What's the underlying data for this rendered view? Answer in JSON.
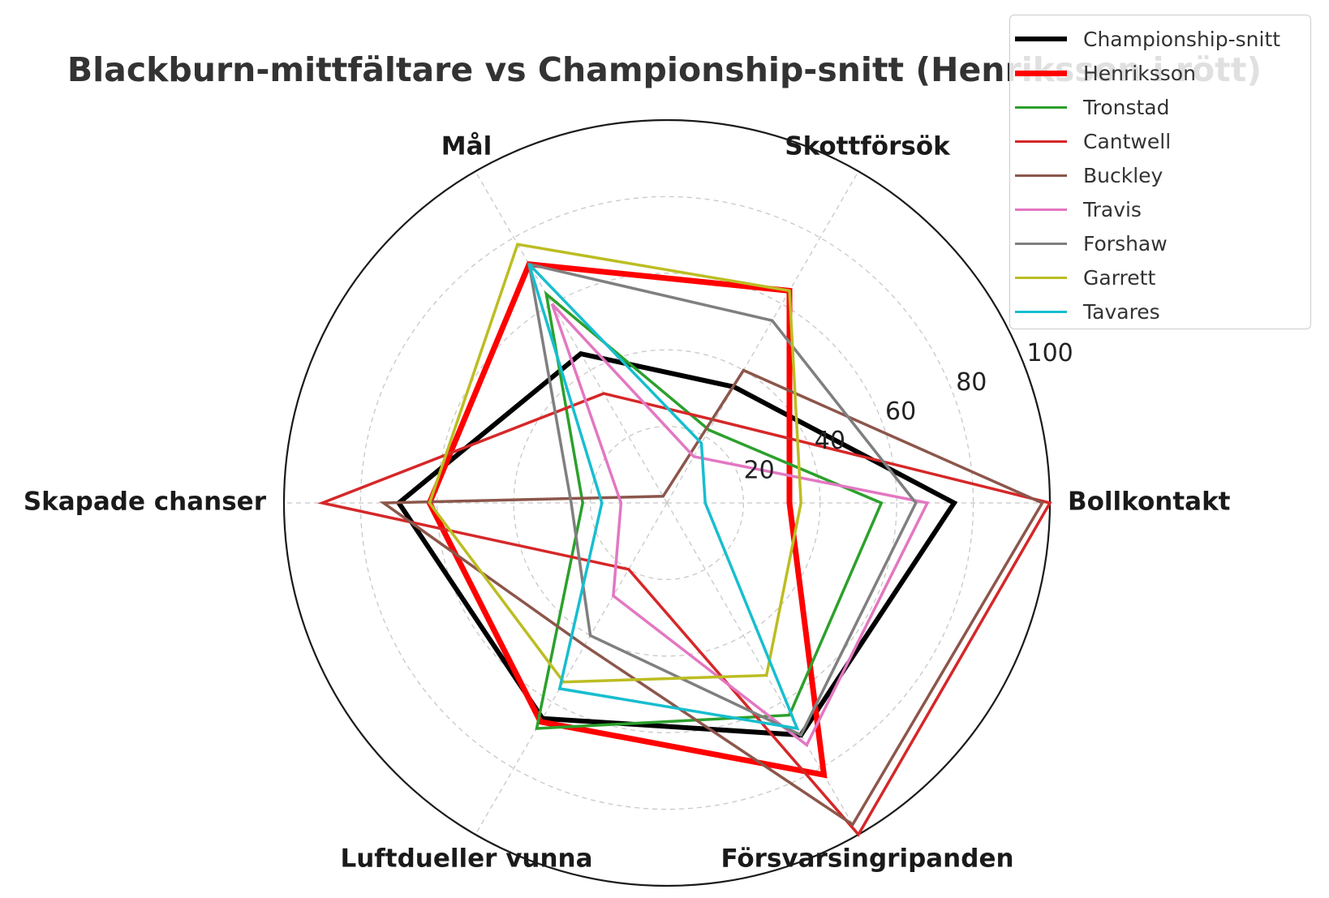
{
  "chart_data": {
    "type": "radar",
    "title": "Blackburn-mittfältare vs Championship-snitt (Henriksson i rött)",
    "axes": [
      "Bollkontakt",
      "Skottförsök",
      "Mål",
      "Skapade chanser",
      "Luftdueller vunna",
      "Försvarsingripanden"
    ],
    "rlim": [
      0,
      100
    ],
    "r_ticks": [
      "20",
      "40",
      "60",
      "80",
      "100"
    ],
    "grid": true,
    "legend_position": "top-right",
    "series": [
      {
        "name": "Championship-snitt",
        "color": "#000000",
        "width": 6,
        "values": [
          75,
          35,
          45,
          70,
          65,
          70
        ]
      },
      {
        "name": "Henriksson",
        "color": "#ff0000",
        "width": 7,
        "values": [
          32,
          64,
          72,
          62,
          66,
          82
        ]
      },
      {
        "name": "Tronstad",
        "color": "#2ca02c",
        "width": 3.5,
        "values": [
          56,
          22,
          63,
          22,
          68,
          64
        ]
      },
      {
        "name": "Cantwell",
        "color": "#d62728",
        "width": 3.5,
        "values": [
          100,
          25,
          33,
          90,
          20,
          100
        ]
      },
      {
        "name": "Buckley",
        "color": "#8c564b",
        "width": 3.5,
        "values": [
          98,
          40,
          2,
          74,
          43,
          97
        ]
      },
      {
        "name": "Travis",
        "color": "#e377c2",
        "width": 3.5,
        "values": [
          68,
          14,
          60,
          12,
          28,
          73
        ]
      },
      {
        "name": "Forshaw",
        "color": "#7f7f7f",
        "width": 3.5,
        "values": [
          65,
          55,
          72,
          25,
          40,
          70
        ]
      },
      {
        "name": "Garrett",
        "color": "#bcbd22",
        "width": 3.5,
        "values": [
          35,
          64,
          78,
          62,
          54,
          52
        ]
      },
      {
        "name": "Tavares",
        "color": "#17becf",
        "width": 3.5,
        "values": [
          10,
          18,
          72,
          17,
          56,
          68
        ]
      }
    ]
  }
}
